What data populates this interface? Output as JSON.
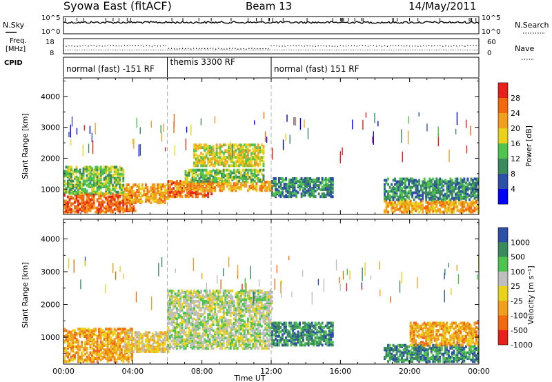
{
  "header": {
    "title": "Syowa East (fitACF)",
    "beam": "Beam 13",
    "date": "14/May/2011"
  },
  "top_panels": {
    "nsky_label": "N.Sky",
    "nsearch_label": "N.Search",
    "nsky_ticks": [
      "10^5",
      "10^0"
    ],
    "nsearch_ticks": [
      "10^5",
      "10^0"
    ],
    "freq_label_1": "Freq.",
    "freq_label_2": "[MHz]",
    "freq_ticks": [
      "18",
      "8"
    ],
    "nave_label": "Nave",
    "nave_ticks": [
      "60",
      "0"
    ],
    "cpid_label": "CPID",
    "cpid_segments": [
      {
        "label": "normal (fast) -151 RF",
        "start_hour": 0,
        "end_hour": 6
      },
      {
        "label": "themis 3300 RF",
        "start_hour": 6,
        "end_hour": 12
      },
      {
        "label": "normal (fast) 151 RF",
        "start_hour": 12,
        "end_hour": 24
      }
    ]
  },
  "chart_data": [
    {
      "type": "heatmap",
      "name": "power",
      "ylabel": "Slant Range [km]",
      "xlim": [
        0,
        24
      ],
      "ylim": [
        180,
        4600
      ],
      "yticks": [
        "1000",
        "2000",
        "3000",
        "4000"
      ],
      "ytick_values": [
        1000,
        2000,
        3000,
        4000
      ],
      "colorbar_label": "Power [dB]",
      "colorbar_ticks": [
        "4",
        "8",
        "12",
        "16",
        "20",
        "24",
        "28"
      ],
      "colorbar_range": [
        0,
        30
      ],
      "colors": [
        "#0000ff",
        "#2d4fa6",
        "#3a8a5e",
        "#4ec34e",
        "#e8d21c",
        "#f0a01e",
        "#f06a10",
        "#e8201a"
      ],
      "regions": [
        {
          "t0": 0.0,
          "t1": 4.2,
          "r0": 300,
          "r1": 900,
          "v": 24
        },
        {
          "t0": 0.0,
          "t1": 3.5,
          "r0": 900,
          "r1": 1800,
          "v": 14
        },
        {
          "t0": 3.5,
          "t1": 6.0,
          "r0": 600,
          "r1": 1200,
          "v": 20
        },
        {
          "t0": 6.0,
          "t1": 8.5,
          "r0": 800,
          "r1": 1300,
          "v": 24
        },
        {
          "t0": 6.5,
          "t1": 12.0,
          "r0": 1000,
          "r1": 1300,
          "v": 22
        },
        {
          "t0": 7.0,
          "t1": 11.5,
          "r0": 1300,
          "r1": 1700,
          "v": 12
        },
        {
          "t0": 7.5,
          "t1": 11.5,
          "r0": 1800,
          "r1": 2500,
          "v": 16
        },
        {
          "t0": 12.0,
          "t1": 15.5,
          "r0": 800,
          "r1": 1400,
          "v": 10
        },
        {
          "t0": 18.5,
          "t1": 24.0,
          "r0": 300,
          "r1": 700,
          "v": 22
        },
        {
          "t0": 18.5,
          "t1": 24.0,
          "r0": 700,
          "r1": 1400,
          "v": 10
        }
      ]
    },
    {
      "type": "heatmap",
      "name": "velocity",
      "ylabel": "Slant Range [km]",
      "xlabel": "Time UT",
      "xlim": [
        0,
        24
      ],
      "ylim": [
        180,
        4600
      ],
      "xticks": [
        "00:00",
        "04:00",
        "08:00",
        "12:00",
        "16:00",
        "20:00",
        "00:00"
      ],
      "xtick_values": [
        0,
        4,
        8,
        12,
        16,
        20,
        24
      ],
      "yticks": [
        "1000",
        "2000",
        "3000",
        "4000"
      ],
      "ytick_values": [
        1000,
        2000,
        3000,
        4000
      ],
      "colorbar_label": "Velocity [m s⁻¹]",
      "colorbar_ticks": [
        "1000",
        "500",
        "100",
        "25",
        "-25",
        "-100",
        "-500",
        "-1000"
      ],
      "colors": [
        "#2d4fa6",
        "#3a8a5e",
        "#4ec34e",
        "#bebebe",
        "#e8d21c",
        "#f0a01e",
        "#f06a10",
        "#e8201a"
      ],
      "regions": [
        {
          "t0": 0.0,
          "t1": 4.0,
          "r0": 300,
          "r1": 1300,
          "v": -300
        },
        {
          "t0": 3.5,
          "t1": 6.0,
          "r0": 600,
          "r1": 1200,
          "v": -80
        },
        {
          "t0": 6.0,
          "t1": 12.0,
          "r0": 700,
          "r1": 2500,
          "v": 0
        },
        {
          "t0": 12.0,
          "t1": 15.5,
          "r0": 800,
          "r1": 1500,
          "v": 200
        },
        {
          "t0": 18.5,
          "t1": 24.0,
          "r0": 300,
          "r1": 800,
          "v": 200
        },
        {
          "t0": 20.0,
          "t1": 24.0,
          "r0": 800,
          "r1": 1500,
          "v": -150
        }
      ]
    }
  ]
}
